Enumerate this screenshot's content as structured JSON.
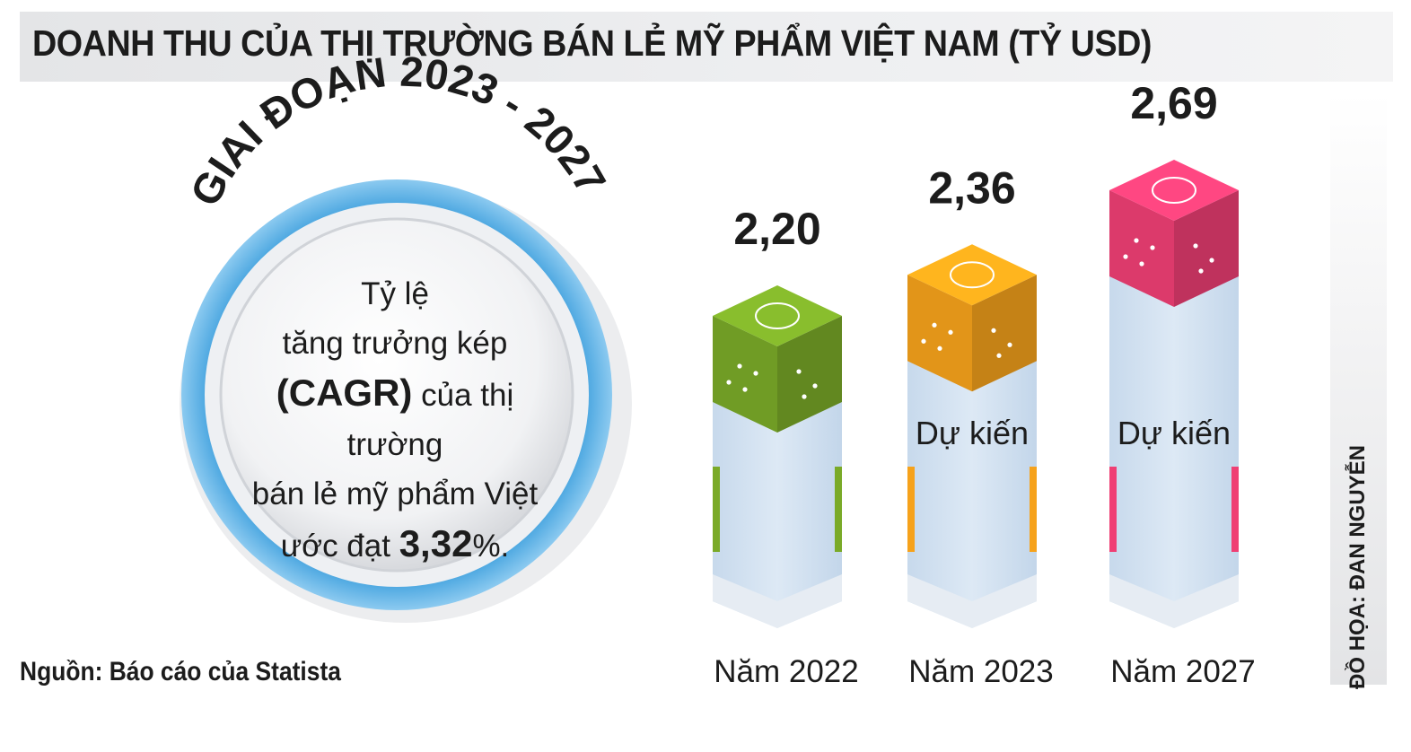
{
  "title": "DOANH THU CỦA THỊ TRƯỜNG BÁN LẺ MỸ PHẨM VIỆT NAM (TỶ USD)",
  "period_label": "GIAI ĐOẠN 2023 - 2027",
  "cagr": {
    "line1": "Tỷ lệ",
    "line2": "tăng trưởng kép",
    "line3_bold": "(CAGR)",
    "line3_rest": " của thị trường",
    "line4": "bán lẻ mỹ phẩm Việt",
    "line5_pre": "ước đạt ",
    "line5_value": "3,32",
    "line5_post": "%."
  },
  "source": "Nguồn: Báo cáo của Statista",
  "credit": "ĐỒ HỌA: ĐAN NGUYỄN",
  "projected_label": "Dự kiến",
  "chart_data": {
    "type": "bar",
    "title": "DOANH THU CỦA THỊ TRƯỜNG BÁN LẺ MỸ PHẨM VIỆT NAM (TỶ USD)",
    "categories": [
      "Năm 2022",
      "Năm 2023",
      "Năm 2027"
    ],
    "values": [
      2.2,
      2.36,
      2.69
    ],
    "value_labels": [
      "2,20",
      "2,36",
      "2,69"
    ],
    "projected": [
      false,
      true,
      true
    ],
    "colors": [
      "#7aaa28",
      "#f6a21b",
      "#ef3f74"
    ],
    "xlabel": "",
    "ylabel": "",
    "grid": false,
    "legend": "none"
  }
}
